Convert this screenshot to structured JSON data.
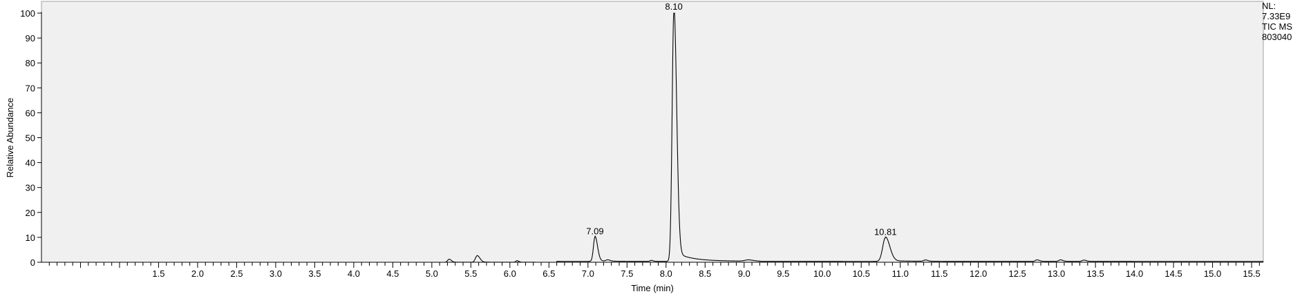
{
  "chart_data": {
    "type": "line",
    "title": "",
    "xlabel": "Time (min)",
    "ylabel": "Relative Abundance",
    "xlim": [
      0.0,
      15.65
    ],
    "ylim": [
      0,
      100
    ],
    "x_ticks": [
      "1.5",
      "2.0",
      "2.5",
      "3.0",
      "3.5",
      "4.0",
      "4.5",
      "5.0",
      "5.5",
      "6.0",
      "6.5",
      "7.0",
      "7.5",
      "8.0",
      "8.5",
      "9.0",
      "9.5",
      "10.0",
      "10.5",
      "11.0",
      "11.5",
      "12.0",
      "12.5",
      "13.0",
      "13.5",
      "14.0",
      "14.5",
      "15.0",
      "15.5"
    ],
    "y_ticks": [
      "0",
      "10",
      "20",
      "30",
      "40",
      "50",
      "60",
      "70",
      "80",
      "90",
      "100"
    ],
    "grid": false,
    "background": "#f0f0f0",
    "trace_color": "#000000",
    "peaks": [
      {
        "rt": 5.22,
        "height": 1.2,
        "width": 0.018,
        "label": ""
      },
      {
        "rt": 5.58,
        "height": 2.6,
        "width": 0.022,
        "label": ""
      },
      {
        "rt": 6.09,
        "height": 0.6,
        "width": 0.015,
        "label": ""
      },
      {
        "rt": 7.09,
        "height": 9.8,
        "width": 0.02,
        "label": "7.09"
      },
      {
        "rt": 7.25,
        "height": 0.5,
        "width": 0.02,
        "label": ""
      },
      {
        "rt": 7.81,
        "height": 0.4,
        "width": 0.015,
        "label": ""
      },
      {
        "rt": 8.1,
        "height": 100,
        "width": 0.022,
        "label": "8.10"
      },
      {
        "rt": 9.05,
        "height": 0.5,
        "width": 0.04,
        "label": ""
      },
      {
        "rt": 10.81,
        "height": 9.5,
        "width": 0.035,
        "label": "10.81"
      },
      {
        "rt": 11.32,
        "height": 0.5,
        "width": 0.02,
        "label": ""
      },
      {
        "rt": 12.75,
        "height": 0.6,
        "width": 0.02,
        "label": ""
      },
      {
        "rt": 13.05,
        "height": 0.6,
        "width": 0.02,
        "label": ""
      },
      {
        "rt": 13.35,
        "height": 0.5,
        "width": 0.02,
        "label": ""
      }
    ],
    "annotations": [
      "NL:",
      "7.33E9",
      "TIC  MS",
      "803040"
    ]
  }
}
